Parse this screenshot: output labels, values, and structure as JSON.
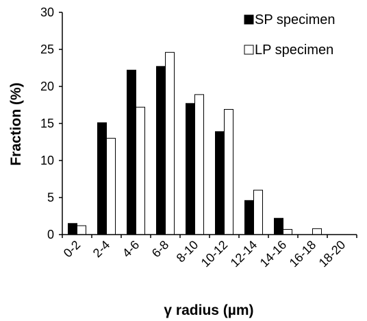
{
  "chart_data": {
    "type": "bar",
    "categories": [
      "0-2",
      "2-4",
      "4-6",
      "6-8",
      "8-10",
      "10-12",
      "12-14",
      "14-16",
      "16-18",
      "18-20"
    ],
    "series": [
      {
        "name": "SP specimen",
        "values": [
          1.5,
          15.1,
          22.2,
          22.7,
          17.7,
          13.9,
          4.6,
          2.2,
          0,
          0
        ],
        "color": "#000000"
      },
      {
        "name": "LP specimen",
        "values": [
          1.2,
          13.0,
          17.2,
          24.6,
          18.9,
          16.9,
          6.0,
          0.7,
          0.8,
          0
        ],
        "color": "#ffffff"
      }
    ],
    "title": "",
    "xlabel": "γ radius (µm)",
    "ylabel": "Fraction (%)",
    "ylim": [
      0,
      30
    ],
    "yticks": [
      0,
      5,
      10,
      15,
      20,
      25,
      30
    ],
    "grid": false,
    "legend_position": "top-right"
  }
}
